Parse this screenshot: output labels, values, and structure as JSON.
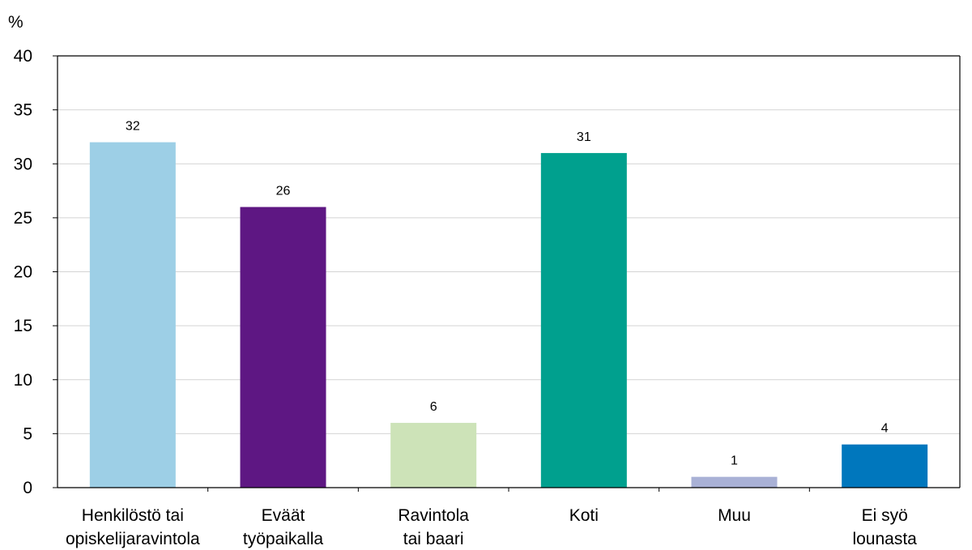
{
  "chart_data": {
    "type": "bar",
    "ylabel": "%",
    "ylim": [
      0,
      40
    ],
    "yticks": [
      0,
      5,
      10,
      15,
      20,
      25,
      30,
      35,
      40
    ],
    "grid": true,
    "categories": [
      [
        "Henkilöstö tai",
        "opiskelijaravintola"
      ],
      [
        "Eväät",
        "työpaikalla"
      ],
      [
        "Ravintola",
        "tai baari"
      ],
      [
        "Koti"
      ],
      [
        "Muu"
      ],
      [
        "Ei syö",
        "lounasta"
      ]
    ],
    "values": [
      32,
      26,
      6,
      31,
      1,
      4
    ],
    "value_labels": [
      "32",
      "26",
      "6",
      "31",
      "1",
      "4"
    ],
    "colors": [
      "#9dcfe6",
      "#5e1783",
      "#cde3b8",
      "#00a08e",
      "#a9b1d6",
      "#0077bd"
    ]
  }
}
